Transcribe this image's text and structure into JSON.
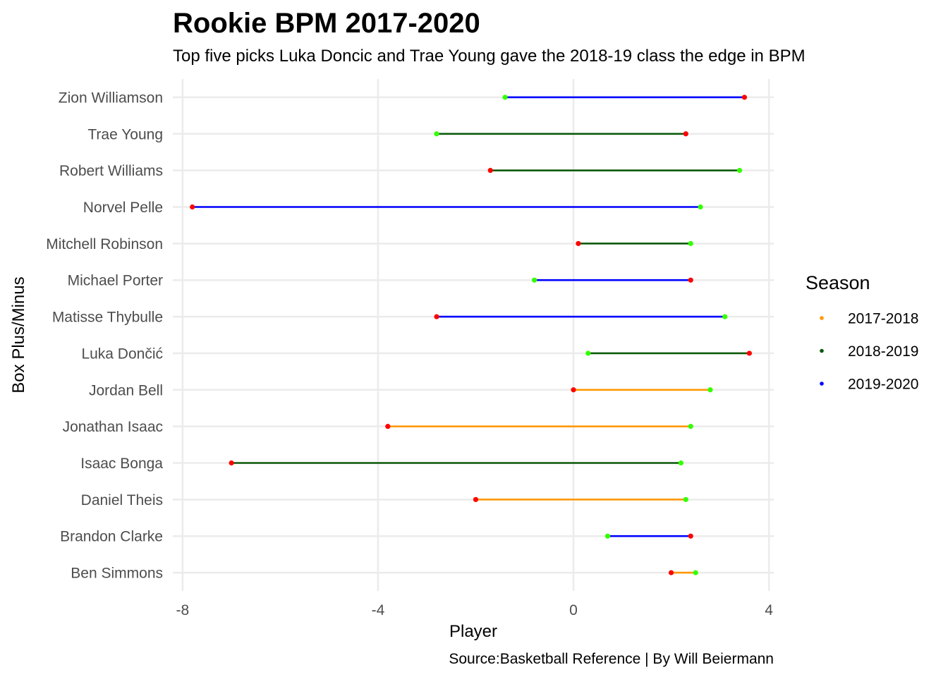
{
  "chart_data": {
    "type": "dumbbell",
    "title": "Rookie BPM 2017-2020",
    "subtitle": "Top five picks Luka Doncic and Trae Young gave the 2018-19 class the edge in BPM",
    "xlabel": "Player",
    "ylabel": "Box Plus/Minus",
    "caption": "Source:Basketball Reference | By Will Beiermann",
    "xlim": [
      -8.2,
      4.1
    ],
    "x_ticks": [
      "-8",
      "-4",
      "0",
      "4"
    ],
    "x_tick_values": [
      -8,
      -4,
      0,
      4
    ],
    "grid": true,
    "legend": {
      "title": "Season",
      "position": "right",
      "entries": [
        {
          "label": "2017-2018",
          "color": "#ff9900"
        },
        {
          "label": "2018-2019",
          "color": "#0b5a0b"
        },
        {
          "label": "2019-2020",
          "color": "#0000ff"
        }
      ]
    },
    "point_colors": {
      "red": "#ff0000",
      "green": "#33ff00"
    },
    "players": [
      {
        "name": "Ben Simmons",
        "season": "2017-2018",
        "red": 2.0,
        "green": 2.5
      },
      {
        "name": "Brandon Clarke",
        "season": "2019-2020",
        "red": 2.4,
        "green": 0.7
      },
      {
        "name": "Daniel Theis",
        "season": "2017-2018",
        "red": -2.0,
        "green": 2.3
      },
      {
        "name": "Isaac Bonga",
        "season": "2018-2019",
        "red": -7.0,
        "green": 2.2
      },
      {
        "name": "Jonathan Isaac",
        "season": "2017-2018",
        "red": -3.8,
        "green": 2.4
      },
      {
        "name": "Jordan Bell",
        "season": "2017-2018",
        "red": 0.0,
        "green": 2.8
      },
      {
        "name": "Luka Dončić",
        "season": "2018-2019",
        "red": 3.6,
        "green": 0.3
      },
      {
        "name": "Matisse Thybulle",
        "season": "2019-2020",
        "red": -2.8,
        "green": 3.1
      },
      {
        "name": "Michael Porter",
        "season": "2019-2020",
        "red": 2.4,
        "green": -0.8
      },
      {
        "name": "Mitchell Robinson",
        "season": "2018-2019",
        "red": 0.1,
        "green": 2.4
      },
      {
        "name": "Norvel Pelle",
        "season": "2019-2020",
        "red": -7.8,
        "green": 2.6
      },
      {
        "name": "Robert Williams",
        "season": "2018-2019",
        "red": -1.7,
        "green": 3.4
      },
      {
        "name": "Trae Young",
        "season": "2018-2019",
        "red": 2.3,
        "green": -2.8
      },
      {
        "name": "Zion Williamson",
        "season": "2019-2020",
        "red": 3.5,
        "green": -1.4
      }
    ]
  }
}
